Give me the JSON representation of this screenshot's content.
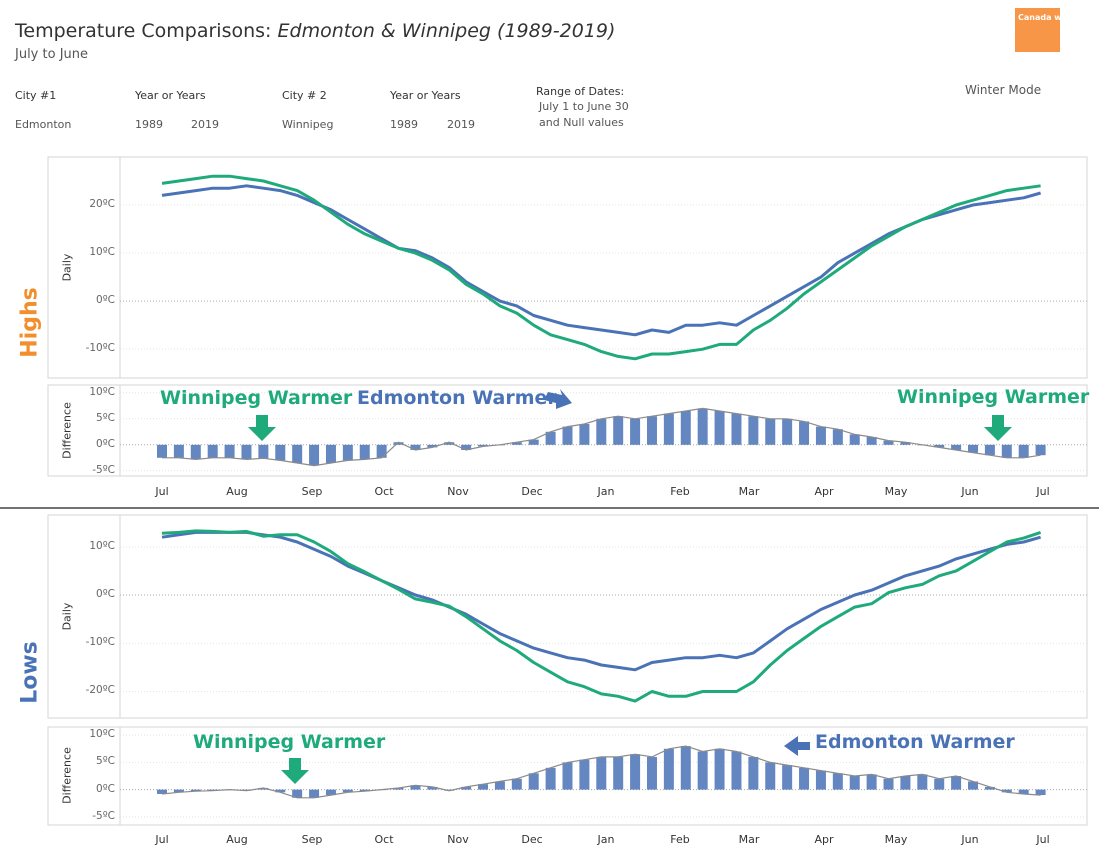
{
  "header": {
    "title_prefix": "Temperature Comparisons: ",
    "title_italic": "Edmonton & Winnipeg (1989-2019)",
    "subtitle": "July to June",
    "logo_text": "Canada weather nerdery",
    "winter_mode": "Winter Mode"
  },
  "filters": {
    "city1_label": "City #1",
    "city1_value": "Edmonton",
    "years1_label": "Year or Years",
    "years1_from": "1989",
    "years1_to": "2019",
    "city2_label": "City # 2",
    "city2_value": "Winnipeg",
    "years2_label": "Year or Years",
    "years2_from": "1989",
    "years2_to": "2019",
    "range_label": "Range of Dates:",
    "range_line1": "July 1 to June 30",
    "range_line2": "and Null values"
  },
  "colors": {
    "edmonton": "#4a72b6",
    "winnipeg": "#1faa7c",
    "highs": "#f28e2b",
    "lows": "#4a72b6",
    "logo": "#f79646",
    "diff_line": "#8a8a8a"
  },
  "chart_data": [
    {
      "type": "line",
      "section": "Highs",
      "ylabel": "Daily",
      "yticks": [
        "20ºC",
        "10ºC",
        "0ºC",
        "-10ºC"
      ],
      "ytick_values": [
        20,
        10,
        0,
        -10
      ],
      "ylim": [
        -16,
        30
      ],
      "x_ticks": [
        "Jul",
        "Aug",
        "Sep",
        "Oct",
        "Nov",
        "Dec",
        "Jan",
        "Feb",
        "Mar",
        "Apr",
        "May",
        "Jun",
        "Jul"
      ],
      "series": [
        {
          "city": "Edmonton",
          "values": [
            22,
            22.5,
            23,
            23.5,
            23.5,
            24,
            23.5,
            23,
            22,
            20.5,
            19,
            17,
            15,
            13,
            11,
            10.5,
            9,
            7,
            4,
            2,
            0,
            -1,
            -3,
            -4,
            -5,
            -5.5,
            -6,
            -6.5,
            -7,
            -6,
            -6.5,
            -5,
            -5,
            -4.5,
            -5,
            -3,
            -1,
            1,
            3,
            5,
            8,
            10,
            12,
            14,
            15.5,
            17,
            18,
            19,
            20,
            20.5,
            21,
            21.5,
            22.5
          ]
        },
        {
          "city": "Winnipeg",
          "values": [
            24.5,
            25,
            25.5,
            26,
            26,
            25.5,
            25,
            24,
            23,
            21,
            18.5,
            16,
            14,
            12.5,
            11,
            10,
            8.5,
            6.5,
            3.5,
            1.5,
            -1,
            -2.5,
            -5,
            -7,
            -8,
            -9,
            -10.5,
            -11.5,
            -12,
            -11,
            -11,
            -10.5,
            -10,
            -9,
            -9,
            -6,
            -4,
            -1.5,
            1.5,
            4,
            6.5,
            9,
            11.5,
            13.5,
            15.5,
            17,
            18.5,
            20,
            21,
            22,
            23,
            23.5,
            24
          ]
        }
      ]
    },
    {
      "type": "bar",
      "section": "Highs",
      "ylabel": "Difference",
      "yticks": [
        "10ºC",
        "5ºC",
        "0ºC",
        "-5ºC"
      ],
      "ytick_values": [
        10,
        5,
        0,
        -5
      ],
      "ylim": [
        -6,
        11.5
      ],
      "values": [
        -2.5,
        -2.5,
        -2.8,
        -2.5,
        -2.5,
        -2.8,
        -2.6,
        -3,
        -3.5,
        -4,
        -3.5,
        -3,
        -2.8,
        -2.5,
        0.5,
        -1,
        -0.5,
        0.5,
        -1,
        -0.3,
        0,
        0.5,
        1,
        2.5,
        3.5,
        4,
        5,
        5.5,
        5,
        5.5,
        6,
        6.5,
        7,
        6.5,
        6,
        5.5,
        5,
        5,
        4.5,
        3.5,
        3,
        2,
        1.5,
        0.8,
        0.5,
        0,
        -0.5,
        -1,
        -1.5,
        -2,
        -2.5,
        -2.5,
        -2
      ],
      "annotations": [
        {
          "text": "Winnipeg Warmer",
          "arrow": "down"
        },
        {
          "text": "Edmonton Warmer",
          "arrow": "right"
        },
        {
          "text": "Winnipeg Warmer",
          "arrow": "down"
        }
      ]
    },
    {
      "type": "line",
      "section": "Lows",
      "ylabel": "Daily",
      "yticks": [
        "10ºC",
        "0ºC",
        "-10ºC",
        "-20ºC"
      ],
      "ytick_values": [
        10,
        0,
        -10,
        -20
      ],
      "ylim": [
        -25.5,
        16.6
      ],
      "series": [
        {
          "city": "Edmonton",
          "values": [
            12,
            12.5,
            13,
            13,
            13,
            13,
            12.5,
            12,
            11,
            9.5,
            8,
            6,
            4.5,
            3,
            1.5,
            0,
            -1,
            -2.5,
            -4,
            -6,
            -8,
            -9.5,
            -11,
            -12,
            -13,
            -13.5,
            -14.5,
            -15,
            -15.5,
            -14,
            -13.5,
            -13,
            -13,
            -12.5,
            -13,
            -12,
            -9.5,
            -7,
            -5,
            -3,
            -1.5,
            0,
            1,
            2.5,
            4,
            5,
            6,
            7.5,
            8.5,
            9.5,
            10.5,
            11,
            12
          ]
        },
        {
          "city": "Winnipeg",
          "values": [
            12.8,
            13,
            13.3,
            13.2,
            13,
            13.2,
            12.2,
            12.5,
            12.5,
            11,
            9,
            6.5,
            4.8,
            3,
            1.2,
            -0.8,
            -1.5,
            -2.3,
            -4.5,
            -7,
            -9.5,
            -11.5,
            -14,
            -16,
            -18,
            -19,
            -20.5,
            -21,
            -22,
            -20,
            -21,
            -21,
            -20,
            -20,
            -20,
            -18,
            -14.5,
            -11.5,
            -9,
            -6.5,
            -4.5,
            -2.5,
            -1.8,
            0.5,
            1.5,
            2.2,
            4,
            5,
            7,
            9,
            11,
            11.8,
            13
          ]
        }
      ]
    },
    {
      "type": "bar",
      "section": "Lows",
      "ylabel": "Difference",
      "yticks": [
        "10ºC",
        "5ºC",
        "0ºC",
        "-5ºC"
      ],
      "ytick_values": [
        10,
        5,
        0,
        -5
      ],
      "ylim": [
        -6.5,
        11.5
      ],
      "values": [
        -0.8,
        -0.5,
        -0.3,
        -0.2,
        0,
        -0.2,
        0.3,
        -0.5,
        -1.5,
        -1.5,
        -1,
        -0.5,
        -0.3,
        0,
        0.3,
        0.8,
        0.5,
        -0.2,
        0.5,
        1,
        1.5,
        2,
        3,
        4,
        5,
        5.5,
        6,
        6,
        6.5,
        6,
        7.5,
        8,
        7,
        7.5,
        7,
        6,
        5,
        4.5,
        4,
        3.5,
        3,
        2.5,
        2.8,
        2,
        2.5,
        2.8,
        2,
        2.5,
        1.5,
        0.5,
        -0.5,
        -0.8,
        -1
      ],
      "annotations": [
        {
          "text": "Winnipeg Warmer",
          "arrow": "down"
        },
        {
          "text": "Edmonton Warmer",
          "arrow": "left"
        }
      ]
    }
  ]
}
